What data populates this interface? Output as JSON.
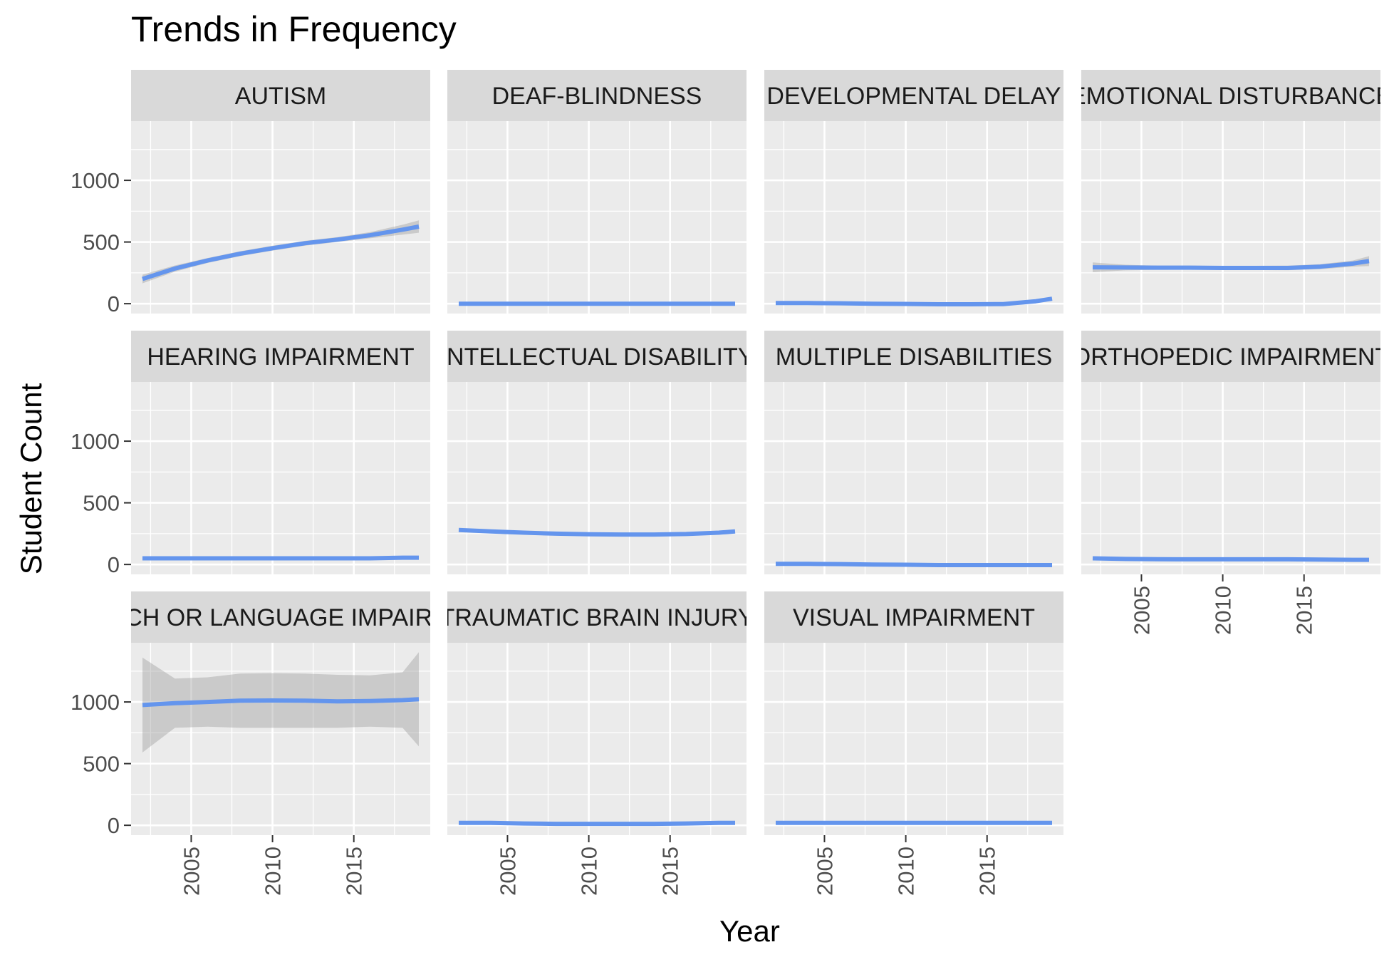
{
  "chart_data": {
    "type": "line",
    "title": "Trends in Frequency",
    "xlabel": "Year",
    "ylabel": "Student Count",
    "xlim": [
      2001.3,
      2019.7
    ],
    "ylim": [
      -80,
      1480
    ],
    "x_ticks": [
      2005,
      2010,
      2015
    ],
    "y_ticks": [
      0,
      500,
      1000
    ],
    "grid": true,
    "line_color": "#6495ED",
    "band_color": "#999999",
    "panel_bg": "#EBEBEB",
    "strip_bg": "#D9D9D9",
    "x": [
      2002,
      2004,
      2006,
      2008,
      2010,
      2012,
      2014,
      2016,
      2018,
      2019
    ],
    "series": [
      {
        "name": "AUTISM",
        "values": [
          200,
          285,
          350,
          405,
          450,
          490,
          520,
          555,
          600,
          625
        ],
        "lower": [
          165,
          260,
          330,
          385,
          430,
          470,
          500,
          530,
          560,
          575
        ],
        "upper": [
          235,
          310,
          370,
          425,
          470,
          510,
          540,
          580,
          640,
          675
        ]
      },
      {
        "name": "DEAF-BLINDNESS",
        "values": [
          0,
          0,
          0,
          0,
          0,
          0,
          0,
          0,
          0,
          0
        ]
      },
      {
        "name": "DEVELOPMENTAL DELAY",
        "values": [
          5,
          5,
          3,
          0,
          -2,
          -5,
          -5,
          -3,
          20,
          40
        ]
      },
      {
        "name": "EMOTIONAL DISTURBANCE",
        "values": [
          295,
          293,
          292,
          292,
          290,
          290,
          290,
          300,
          325,
          345
        ],
        "lower": [
          255,
          270,
          275,
          276,
          274,
          273,
          272,
          280,
          300,
          305
        ],
        "upper": [
          335,
          316,
          309,
          308,
          306,
          307,
          308,
          320,
          350,
          385
        ]
      },
      {
        "name": "HEARING IMPAIRMENT",
        "values": [
          50,
          50,
          50,
          50,
          50,
          50,
          50,
          50,
          55,
          55
        ]
      },
      {
        "name": "INTELLECTUAL DISABILITY",
        "values": [
          280,
          268,
          258,
          250,
          245,
          243,
          243,
          247,
          258,
          268
        ]
      },
      {
        "name": "MULTIPLE DISABILITIES",
        "values": [
          5,
          5,
          3,
          0,
          -2,
          -5,
          -5,
          -5,
          -5,
          -5
        ]
      },
      {
        "name": "ORTHOPEDIC IMPAIRMENT",
        "values": [
          50,
          45,
          43,
          42,
          42,
          42,
          42,
          40,
          38,
          38
        ]
      },
      {
        "name": "SPEECH OR LANGUAGE IMPAIRMENT",
        "values": [
          975,
          990,
          1000,
          1010,
          1012,
          1010,
          1005,
          1008,
          1015,
          1022
        ],
        "lower": [
          590,
          790,
          800,
          790,
          790,
          790,
          790,
          800,
          790,
          640
        ],
        "upper": [
          1360,
          1190,
          1200,
          1230,
          1234,
          1230,
          1220,
          1216,
          1240,
          1404
        ]
      },
      {
        "name": "TRAUMATIC BRAIN INJURY",
        "values": [
          20,
          20,
          15,
          12,
          12,
          12,
          12,
          15,
          20,
          20
        ]
      },
      {
        "name": "VISUAL IMPAIRMENT",
        "values": [
          20,
          20,
          20,
          20,
          20,
          20,
          20,
          20,
          20,
          20
        ]
      }
    ]
  }
}
